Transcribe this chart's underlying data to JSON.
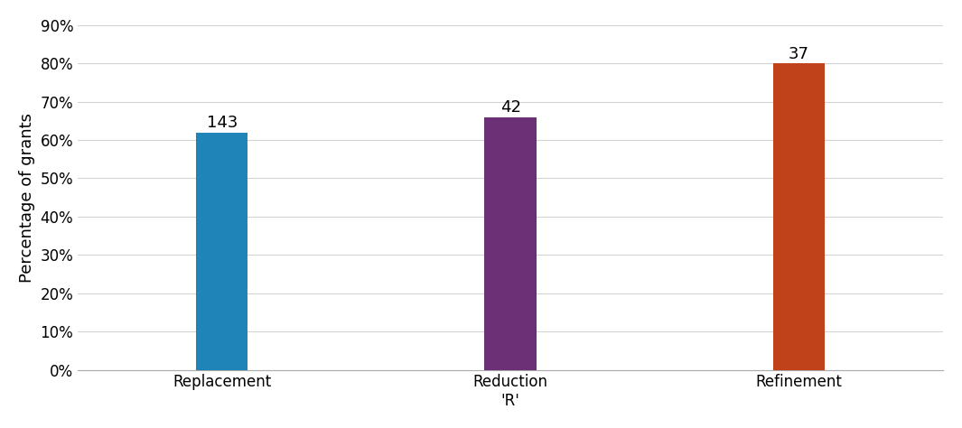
{
  "categories": [
    "Replacement",
    "Reduction\n'R'",
    "Refinement"
  ],
  "values": [
    0.62,
    0.66,
    0.8
  ],
  "bar_labels": [
    "143",
    "42",
    "37"
  ],
  "bar_colors": [
    "#1f85b8",
    "#6b3075",
    "#c0421a"
  ],
  "ylabel": "Percentage of grants",
  "ylim": [
    0,
    0.9
  ],
  "yticks": [
    0.0,
    0.1,
    0.2,
    0.3,
    0.4,
    0.5,
    0.6,
    0.7,
    0.8,
    0.9
  ],
  "ytick_labels": [
    "0%",
    "10%",
    "20%",
    "30%",
    "40%",
    "50%",
    "60%",
    "70%",
    "80%",
    "90%"
  ],
  "grid_color": "#d3d3d3",
  "background_color": "#ffffff",
  "label_fontsize": 13,
  "tick_fontsize": 12,
  "bar_label_fontsize": 13,
  "bar_width": 0.18,
  "xlim": [
    -0.5,
    2.5
  ]
}
